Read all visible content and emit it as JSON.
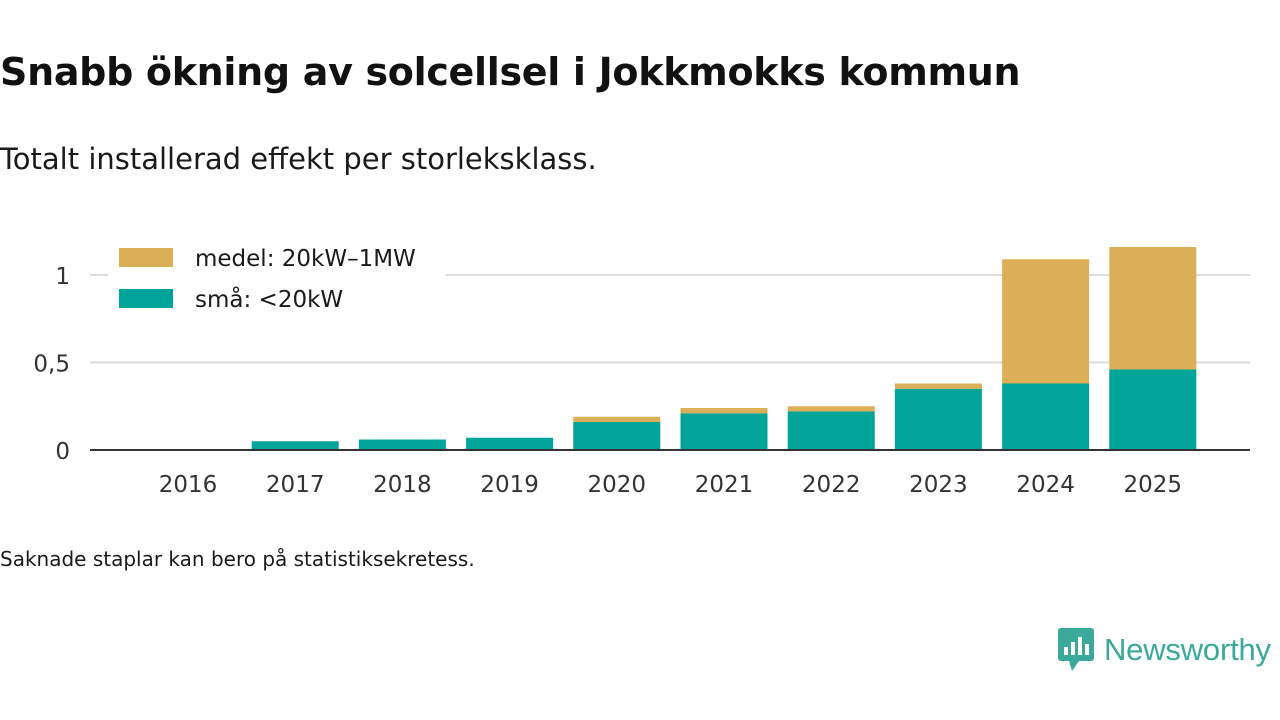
{
  "header": {
    "title": "Snabb ökning av solcellsel i Jokkmokks kommun",
    "subtitle": "Totalt installerad effekt per storleksklass."
  },
  "footer": {
    "note": "Saknade staplar kan bero på statistiksekretess.",
    "brand": "Newsworthy"
  },
  "colors": {
    "small": "#00a498",
    "medium": "#dbae58",
    "grid": "#dddddd",
    "axis": "#333333",
    "brand": "#3aa89a"
  },
  "chart_data": {
    "type": "bar",
    "stacked": true,
    "categories": [
      "2016",
      "2017",
      "2018",
      "2019",
      "2020",
      "2021",
      "2022",
      "2023",
      "2024",
      "2025"
    ],
    "series": [
      {
        "name": "små: <20kW",
        "color": "#00a498",
        "values": [
          0,
          0.05,
          0.06,
          0.07,
          0.16,
          0.21,
          0.22,
          0.35,
          0.38,
          0.46
        ]
      },
      {
        "name": "medel: 20kW–1MW",
        "color": "#dbae58",
        "values": [
          0,
          0,
          0,
          0,
          0.03,
          0.03,
          0.03,
          0.03,
          0.71,
          0.7
        ]
      }
    ],
    "yticks": [
      0,
      0.5,
      1
    ],
    "ytick_labels": [
      "0",
      "0,5",
      "1"
    ],
    "ylim": [
      0,
      1.2
    ],
    "legend": [
      {
        "label": "medel: 20kW–1MW",
        "color": "#dbae58"
      },
      {
        "label": "små: <20kW",
        "color": "#00a498"
      }
    ],
    "legend_position": "top-left",
    "grid": true
  }
}
